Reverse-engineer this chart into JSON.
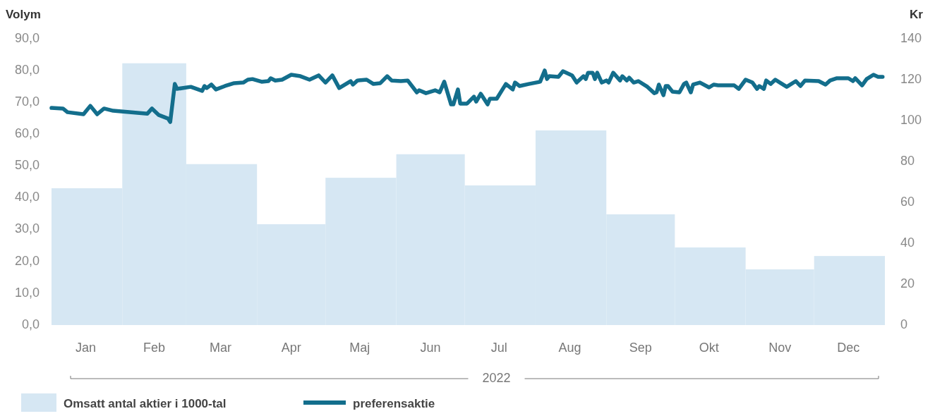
{
  "chart_data": {
    "type": "bar",
    "ylabel": "Volym",
    "y2label": "Kr",
    "xlim": [
      "2022-01-01",
      "2023-01-01"
    ],
    "xticks": [
      {
        "value": "2022-01-16",
        "label": "Jan"
      },
      {
        "value": "2022-02-15",
        "label": "Feb"
      },
      {
        "value": "2022-03-16",
        "label": "Mar"
      },
      {
        "value": "2022-04-16",
        "label": "Apr"
      },
      {
        "value": "2022-05-16",
        "label": "Maj"
      },
      {
        "value": "2022-06-16",
        "label": "Jun"
      },
      {
        "value": "2022-07-16",
        "label": "Jul"
      },
      {
        "value": "2022-08-16",
        "label": "Aug"
      },
      {
        "value": "2022-09-16",
        "label": "Sep"
      },
      {
        "value": "2022-10-16",
        "label": "Okt"
      },
      {
        "value": "2022-11-16",
        "label": "Nov"
      },
      {
        "value": "2022-12-16",
        "label": "Dec"
      }
    ],
    "series": [
      {
        "name": "Omsatt antal aktier i 1000-tal",
        "color": "#d6e7f3",
        "x": [
          "2022-01-16",
          "2022-02-15",
          "2022-03-16",
          "2022-04-16",
          "2022-05-16",
          "2022-06-16",
          "2022-07-16",
          "2022-08-16",
          "2022-09-16",
          "2022-10-16",
          "2022-11-16",
          "2022-12-16"
        ],
        "values": [
          43.0,
          82.3,
          50.6,
          31.7,
          46.3,
          53.7,
          43.9,
          61.2,
          34.8,
          24.4,
          17.5,
          21.7
        ]
      },
      {
        "name": "preferensaktie",
        "type": "line",
        "axis": "y2",
        "color": "#136e8c",
        "x": [
          "2022-01-01",
          "2022-01-06",
          "2022-01-08",
          "2022-01-15",
          "2022-01-18",
          "2022-01-21",
          "2022-01-24",
          "2022-01-28",
          "2022-02-12",
          "2022-02-14",
          "2022-02-17",
          "2022-02-21",
          "2022-02-22",
          "2022-02-24",
          "2022-02-25",
          "2022-03-03",
          "2022-03-08",
          "2022-03-09",
          "2022-03-10",
          "2022-03-12",
          "2022-03-14",
          "2022-03-18",
          "2022-03-22",
          "2022-03-26",
          "2022-03-28",
          "2022-03-30",
          "2022-04-03",
          "2022-04-06",
          "2022-04-07",
          "2022-04-09",
          "2022-04-12",
          "2022-04-16",
          "2022-04-20",
          "2022-04-24",
          "2022-04-28",
          "2022-05-01",
          "2022-05-04",
          "2022-05-07",
          "2022-05-12",
          "2022-05-13",
          "2022-05-15",
          "2022-05-19",
          "2022-05-22",
          "2022-05-25",
          "2022-05-28",
          "2022-05-30",
          "2022-06-03",
          "2022-06-06",
          "2022-06-10",
          "2022-06-11",
          "2022-06-14",
          "2022-06-18",
          "2022-06-20",
          "2022-06-22",
          "2022-06-25",
          "2022-06-26",
          "2022-06-28",
          "2022-06-29",
          "2022-07-02",
          "2022-07-05",
          "2022-07-06",
          "2022-07-08",
          "2022-07-11",
          "2022-07-12",
          "2022-07-15",
          "2022-07-19",
          "2022-07-22",
          "2022-07-23",
          "2022-07-25",
          "2022-07-29",
          "2022-08-03",
          "2022-08-05",
          "2022-08-06",
          "2022-08-07",
          "2022-08-11",
          "2022-08-13",
          "2022-08-17",
          "2022-08-19",
          "2022-08-22",
          "2022-08-23",
          "2022-08-24",
          "2022-08-26",
          "2022-08-27",
          "2022-08-28",
          "2022-08-30",
          "2022-09-01",
          "2022-09-02",
          "2022-09-04",
          "2022-09-07",
          "2022-09-08",
          "2022-09-10",
          "2022-09-11",
          "2022-09-13",
          "2022-09-15",
          "2022-09-19",
          "2022-09-22",
          "2022-09-23",
          "2022-09-24",
          "2022-09-26",
          "2022-09-27",
          "2022-09-28",
          "2022-09-30",
          "2022-10-03",
          "2022-10-05",
          "2022-10-06",
          "2022-10-08",
          "2022-10-09",
          "2022-10-12",
          "2022-10-16",
          "2022-10-18",
          "2022-10-20",
          "2022-10-27",
          "2022-10-29",
          "2022-11-01",
          "2022-11-04",
          "2022-11-06",
          "2022-11-07",
          "2022-11-09",
          "2022-11-10",
          "2022-11-12",
          "2022-11-14",
          "2022-11-16",
          "2022-11-19",
          "2022-11-23",
          "2022-11-25",
          "2022-11-27",
          "2022-12-03",
          "2022-12-06",
          "2022-12-08",
          "2022-12-11",
          "2022-12-16",
          "2022-12-18",
          "2022-12-19",
          "2022-12-22",
          "2022-12-24",
          "2022-12-27",
          "2022-12-29",
          "2022-12-31"
        ],
        "values": [
          106.2,
          105.9,
          104.1,
          103.1,
          107.2,
          103.1,
          105.9,
          104.8,
          103.4,
          105.9,
          102.7,
          101.0,
          99.3,
          117.9,
          115.5,
          116.5,
          114.5,
          116.9,
          115.9,
          117.6,
          115.2,
          116.9,
          118.3,
          118.6,
          120.0,
          120.3,
          119.0,
          119.3,
          120.7,
          119.6,
          120.0,
          122.4,
          121.7,
          120.0,
          122.1,
          118.6,
          122.1,
          115.9,
          119.3,
          117.6,
          119.6,
          120.0,
          117.9,
          118.3,
          121.7,
          119.6,
          119.3,
          119.6,
          113.8,
          114.8,
          113.4,
          114.8,
          113.8,
          119.0,
          107.9,
          107.9,
          115.2,
          108.3,
          108.3,
          111.7,
          109.3,
          113.1,
          107.9,
          110.7,
          110.7,
          117.9,
          115.2,
          118.6,
          116.9,
          117.9,
          119.0,
          124.5,
          120.3,
          121.7,
          121.4,
          124.1,
          122.1,
          118.6,
          121.7,
          120.3,
          123.4,
          123.4,
          120.3,
          123.4,
          118.6,
          119.6,
          118.6,
          123.4,
          119.6,
          121.7,
          119.6,
          121.0,
          118.6,
          119.3,
          116.5,
          113.4,
          113.8,
          117.6,
          112.4,
          116.9,
          116.9,
          114.1,
          113.8,
          117.9,
          118.6,
          113.8,
          117.6,
          118.6,
          116.2,
          117.6,
          117.2,
          117.2,
          115.5,
          120.0,
          118.6,
          115.5,
          116.9,
          115.5,
          119.6,
          117.9,
          120.0,
          118.6,
          116.5,
          119.3,
          116.9,
          119.6,
          119.3,
          117.6,
          119.6,
          120.7,
          120.7,
          119.3,
          120.7,
          117.2,
          120.3,
          122.4,
          121.4,
          121.4
        ]
      }
    ],
    "ylim": [
      0,
      90
    ],
    "yticks": [
      {
        "value": 0,
        "label": "0,0"
      },
      {
        "value": 10,
        "label": "10,0"
      },
      {
        "value": 20,
        "label": "20,0"
      },
      {
        "value": 30,
        "label": "30,0"
      },
      {
        "value": 40,
        "label": "40,0"
      },
      {
        "value": 50,
        "label": "50,0"
      },
      {
        "value": 60,
        "label": "60,0"
      },
      {
        "value": 70,
        "label": "70,0"
      },
      {
        "value": 80,
        "label": "80,0"
      },
      {
        "value": 90,
        "label": "90,0"
      }
    ],
    "y2lim": [
      0,
      140
    ],
    "y2ticks": [
      0,
      20,
      40,
      60,
      80,
      100,
      120,
      140
    ],
    "annotations": [
      "2022"
    ],
    "legend": "bottom left",
    "grid": false
  }
}
